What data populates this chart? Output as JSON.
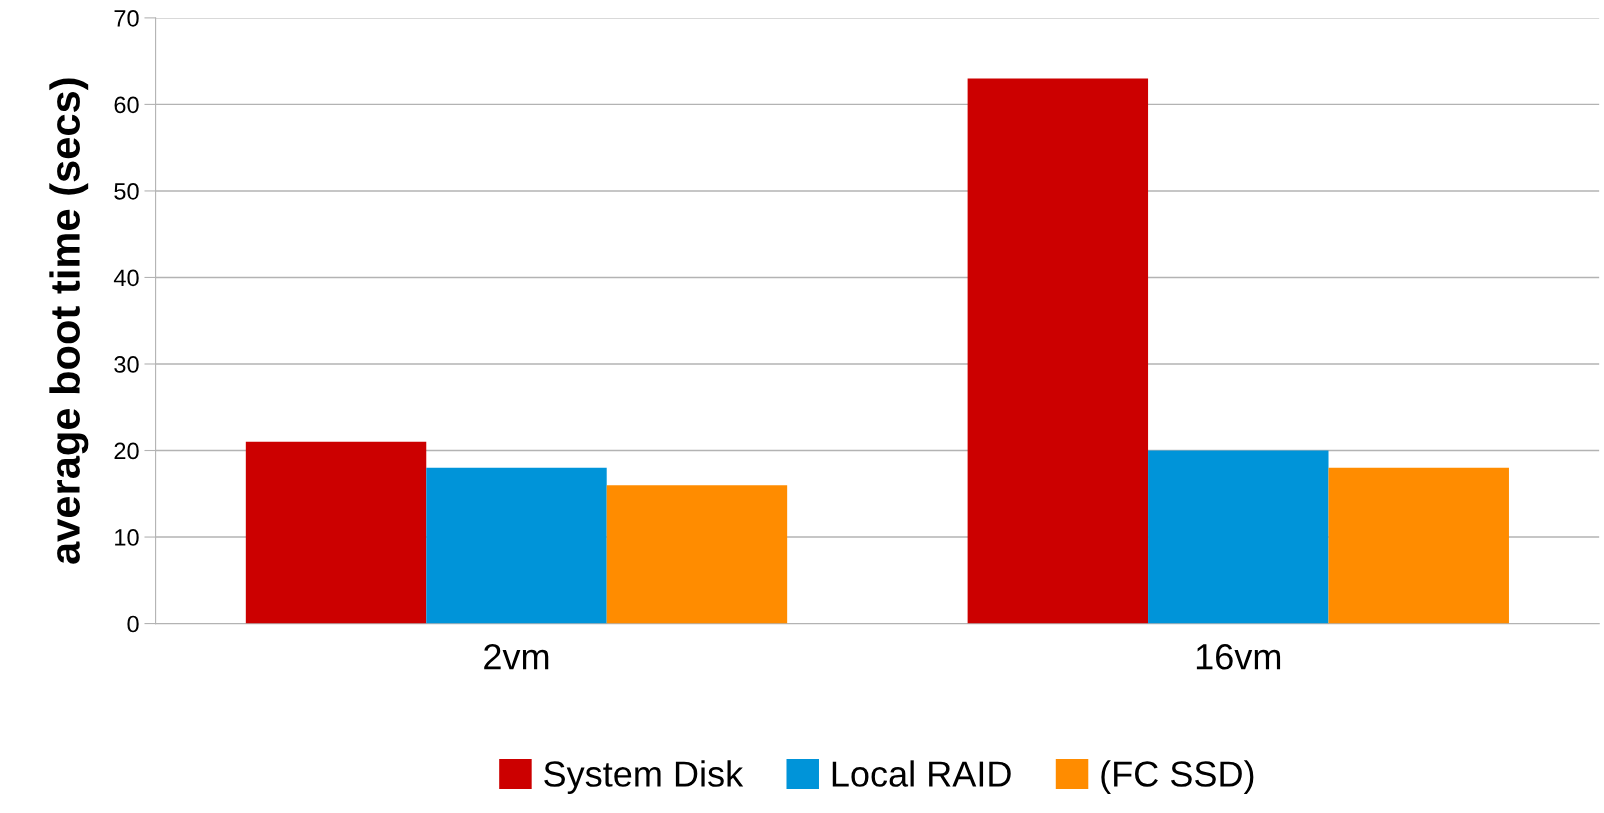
{
  "chart_data": {
    "type": "bar",
    "ylabel": "average boot time (secs)",
    "categories": [
      "2vm",
      "16vm"
    ],
    "series": [
      {
        "name": "System Disk",
        "color": "#cc0000",
        "values": [
          21,
          63
        ]
      },
      {
        "name": "Local RAID",
        "color": "#0094d9",
        "values": [
          18,
          20
        ]
      },
      {
        "name": "(FC SSD)",
        "color": "#ff8c00",
        "values": [
          16,
          18
        ]
      }
    ],
    "ylim": [
      0,
      70
    ],
    "yticks": [
      0,
      10,
      20,
      30,
      40,
      50,
      60,
      70
    ],
    "grid": "y",
    "legend": "bottom"
  }
}
